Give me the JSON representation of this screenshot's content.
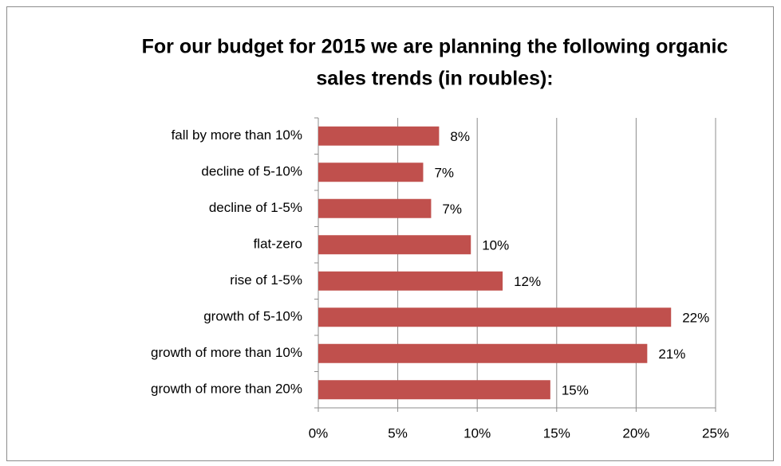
{
  "chart_data": {
    "type": "bar",
    "orientation": "horizontal",
    "title": "For our budget for 2015 we are planning the following organic sales trends (in roubles):",
    "categories": [
      "fall by more than 10%",
      "decline of 5-10%",
      "decline of 1-5%",
      "flat-zero",
      "rise of 1-5%",
      "growth of 5-10%",
      "growth of more than 10%",
      "growth of more than 20%"
    ],
    "values": [
      7.6,
      6.6,
      7.1,
      9.6,
      11.6,
      22.2,
      20.7,
      14.6
    ],
    "value_labels": [
      "8%",
      "7%",
      "7%",
      "10%",
      "12%",
      "22%",
      "21%",
      "15%"
    ],
    "color": "#c0504d",
    "xlim": [
      0,
      25
    ],
    "xticks": [
      {
        "value": 0,
        "label": "0%"
      },
      {
        "value": 5,
        "label": "5%"
      },
      {
        "value": 10,
        "label": "10%"
      },
      {
        "value": 15,
        "label": "15%"
      },
      {
        "value": 20,
        "label": "20%"
      },
      {
        "value": 25,
        "label": "25%"
      }
    ],
    "grid": true
  }
}
